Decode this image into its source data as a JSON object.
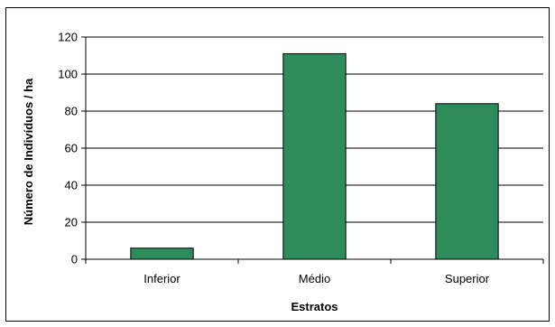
{
  "chart_data": {
    "type": "bar",
    "title": "",
    "categories": [
      "Inferior",
      "Médio",
      "Superior"
    ],
    "values": [
      6,
      111,
      84
    ],
    "xlabel": "Estratos",
    "ylabel": "Número de Indivíduos / ha",
    "ylim": [
      0,
      120
    ],
    "yticks": [
      0,
      20,
      40,
      60,
      80,
      100,
      120
    ],
    "grid": true,
    "legend": "none",
    "bar_color": "#2e8b5b"
  }
}
